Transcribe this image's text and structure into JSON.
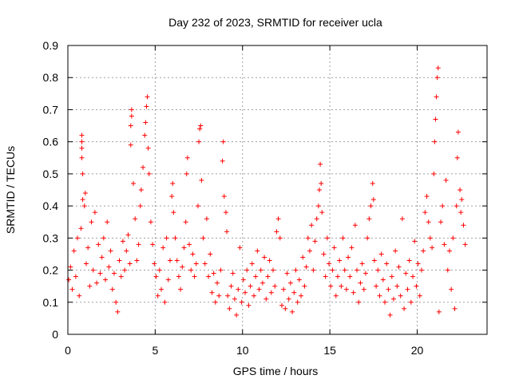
{
  "chart_data": {
    "type": "scatter",
    "title": "Day 232 of 2023, SRMTID for receiver ucla",
    "xlabel": "GPS time / hours",
    "ylabel": "SRMTID / TECUs",
    "xlim": [
      0,
      24
    ],
    "ylim": [
      0,
      0.9
    ],
    "xticks": [
      0,
      5,
      10,
      15,
      20
    ],
    "yticks": [
      0,
      0.1,
      0.2,
      0.3,
      0.4,
      0.5,
      0.6,
      0.7,
      0.8,
      0.9
    ],
    "grid": true,
    "marker": "+",
    "color": "#ff0000",
    "series": [
      {
        "name": "SRMTID",
        "points": [
          [
            0.05,
            0.17
          ],
          [
            0.15,
            0.21
          ],
          [
            0.25,
            0.14
          ],
          [
            0.35,
            0.26
          ],
          [
            0.45,
            0.18
          ],
          [
            0.55,
            0.3
          ],
          [
            0.65,
            0.12
          ],
          [
            0.75,
            0.33
          ],
          [
            0.8,
            0.55
          ],
          [
            0.8,
            0.58
          ],
          [
            0.8,
            0.6
          ],
          [
            0.8,
            0.62
          ],
          [
            0.85,
            0.5
          ],
          [
            0.85,
            0.42
          ],
          [
            0.95,
            0.4
          ],
          [
            1.0,
            0.44
          ],
          [
            1.05,
            0.22
          ],
          [
            1.15,
            0.27
          ],
          [
            1.25,
            0.15
          ],
          [
            1.35,
            0.35
          ],
          [
            1.45,
            0.2
          ],
          [
            1.55,
            0.38
          ],
          [
            1.65,
            0.16
          ],
          [
            1.75,
            0.28
          ],
          [
            1.85,
            0.19
          ],
          [
            1.95,
            0.24
          ],
          [
            2.05,
            0.3
          ],
          [
            2.15,
            0.17
          ],
          [
            2.25,
            0.35
          ],
          [
            2.35,
            0.21
          ],
          [
            2.45,
            0.26
          ],
          [
            2.55,
            0.14
          ],
          [
            2.65,
            0.19
          ],
          [
            2.75,
            0.1
          ],
          [
            2.85,
            0.07
          ],
          [
            2.95,
            0.23
          ],
          [
            3.05,
            0.18
          ],
          [
            3.15,
            0.29
          ],
          [
            3.25,
            0.2
          ],
          [
            3.35,
            0.26
          ],
          [
            3.45,
            0.31
          ],
          [
            3.55,
            0.22
          ],
          [
            3.6,
            0.59
          ],
          [
            3.6,
            0.65
          ],
          [
            3.65,
            0.68
          ],
          [
            3.65,
            0.7
          ],
          [
            3.75,
            0.47
          ],
          [
            3.85,
            0.36
          ],
          [
            3.95,
            0.23
          ],
          [
            4.05,
            0.28
          ],
          [
            4.15,
            0.4
          ],
          [
            4.2,
            0.45
          ],
          [
            4.3,
            0.52
          ],
          [
            4.4,
            0.62
          ],
          [
            4.45,
            0.66
          ],
          [
            4.5,
            0.71
          ],
          [
            4.55,
            0.74
          ],
          [
            4.6,
            0.58
          ],
          [
            4.65,
            0.5
          ],
          [
            4.75,
            0.35
          ],
          [
            4.85,
            0.28
          ],
          [
            4.95,
            0.22
          ],
          [
            5.05,
            0.18
          ],
          [
            5.15,
            0.12
          ],
          [
            5.25,
            0.2
          ],
          [
            5.35,
            0.14
          ],
          [
            5.45,
            0.27
          ],
          [
            5.55,
            0.1
          ],
          [
            5.65,
            0.3
          ],
          [
            5.75,
            0.17
          ],
          [
            5.85,
            0.23
          ],
          [
            5.95,
            0.43
          ],
          [
            6.0,
            0.47
          ],
          [
            6.05,
            0.38
          ],
          [
            6.15,
            0.3
          ],
          [
            6.25,
            0.23
          ],
          [
            6.35,
            0.18
          ],
          [
            6.45,
            0.14
          ],
          [
            6.55,
            0.21
          ],
          [
            6.65,
            0.27
          ],
          [
            6.75,
            0.35
          ],
          [
            6.8,
            0.5
          ],
          [
            6.85,
            0.55
          ],
          [
            6.95,
            0.28
          ],
          [
            7.05,
            0.2
          ],
          [
            7.15,
            0.25
          ],
          [
            7.25,
            0.18
          ],
          [
            7.35,
            0.22
          ],
          [
            7.45,
            0.4
          ],
          [
            7.5,
            0.6
          ],
          [
            7.55,
            0.64
          ],
          [
            7.6,
            0.65
          ],
          [
            7.65,
            0.48
          ],
          [
            7.75,
            0.3
          ],
          [
            7.85,
            0.22
          ],
          [
            7.95,
            0.36
          ],
          [
            8.05,
            0.18
          ],
          [
            8.15,
            0.25
          ],
          [
            8.25,
            0.13
          ],
          [
            8.35,
            0.19
          ],
          [
            8.45,
            0.1
          ],
          [
            8.55,
            0.16
          ],
          [
            8.65,
            0.12
          ],
          [
            8.75,
            0.2
          ],
          [
            8.85,
            0.54
          ],
          [
            8.9,
            0.6
          ],
          [
            8.95,
            0.43
          ],
          [
            9.05,
            0.38
          ],
          [
            9.1,
            0.32
          ],
          [
            9.15,
            0.12
          ],
          [
            9.25,
            0.08
          ],
          [
            9.35,
            0.15
          ],
          [
            9.45,
            0.19
          ],
          [
            9.55,
            0.11
          ],
          [
            9.65,
            0.06
          ],
          [
            9.75,
            0.14
          ],
          [
            9.85,
            0.27
          ],
          [
            9.95,
            0.1
          ],
          [
            10.05,
            0.17
          ],
          [
            10.15,
            0.13
          ],
          [
            10.25,
            0.2
          ],
          [
            10.35,
            0.09
          ],
          [
            10.45,
            0.15
          ],
          [
            10.55,
            0.22
          ],
          [
            10.65,
            0.12
          ],
          [
            10.75,
            0.18
          ],
          [
            10.85,
            0.26
          ],
          [
            10.95,
            0.14
          ],
          [
            11.05,
            0.2
          ],
          [
            11.15,
            0.16
          ],
          [
            11.25,
            0.24
          ],
          [
            11.35,
            0.11
          ],
          [
            11.45,
            0.18
          ],
          [
            11.55,
            0.23
          ],
          [
            11.65,
            0.13
          ],
          [
            11.75,
            0.2
          ],
          [
            11.85,
            0.15
          ],
          [
            11.95,
            0.32
          ],
          [
            12.05,
            0.36
          ],
          [
            12.15,
            0.3
          ],
          [
            12.25,
            0.09
          ],
          [
            12.35,
            0.14
          ],
          [
            12.45,
            0.08
          ],
          [
            12.55,
            0.19
          ],
          [
            12.65,
            0.11
          ],
          [
            12.75,
            0.16
          ],
          [
            12.85,
            0.07
          ],
          [
            12.95,
            0.13
          ],
          [
            13.05,
            0.2
          ],
          [
            13.15,
            0.1
          ],
          [
            13.25,
            0.17
          ],
          [
            13.35,
            0.12
          ],
          [
            13.45,
            0.24
          ],
          [
            13.55,
            0.15
          ],
          [
            13.65,
            0.21
          ],
          [
            13.75,
            0.3
          ],
          [
            13.85,
            0.26
          ],
          [
            13.95,
            0.34
          ],
          [
            14.05,
            0.2
          ],
          [
            14.15,
            0.29
          ],
          [
            14.25,
            0.36
          ],
          [
            14.35,
            0.4
          ],
          [
            14.4,
            0.45
          ],
          [
            14.45,
            0.53
          ],
          [
            14.5,
            0.47
          ],
          [
            14.55,
            0.38
          ],
          [
            14.65,
            0.25
          ],
          [
            14.75,
            0.18
          ],
          [
            14.85,
            0.3
          ],
          [
            14.95,
            0.22
          ],
          [
            15.05,
            0.15
          ],
          [
            15.15,
            0.2
          ],
          [
            15.25,
            0.27
          ],
          [
            15.35,
            0.12
          ],
          [
            15.45,
            0.18
          ],
          [
            15.55,
            0.23
          ],
          [
            15.65,
            0.15
          ],
          [
            15.75,
            0.3
          ],
          [
            15.85,
            0.2
          ],
          [
            15.95,
            0.14
          ],
          [
            16.05,
            0.24
          ],
          [
            16.15,
            0.18
          ],
          [
            16.25,
            0.27
          ],
          [
            16.35,
            0.13
          ],
          [
            16.45,
            0.34
          ],
          [
            16.55,
            0.2
          ],
          [
            16.65,
            0.1
          ],
          [
            16.75,
            0.16
          ],
          [
            16.85,
            0.22
          ],
          [
            16.95,
            0.14
          ],
          [
            17.05,
            0.19
          ],
          [
            17.15,
            0.3
          ],
          [
            17.25,
            0.36
          ],
          [
            17.35,
            0.4
          ],
          [
            17.45,
            0.47
          ],
          [
            17.5,
            0.42
          ],
          [
            17.55,
            0.23
          ],
          [
            17.65,
            0.15
          ],
          [
            17.75,
            0.2
          ],
          [
            17.85,
            0.12
          ],
          [
            17.95,
            0.25
          ],
          [
            18.05,
            0.17
          ],
          [
            18.15,
            0.1
          ],
          [
            18.25,
            0.22
          ],
          [
            18.35,
            0.14
          ],
          [
            18.45,
            0.06
          ],
          [
            18.55,
            0.18
          ],
          [
            18.65,
            0.11
          ],
          [
            18.75,
            0.26
          ],
          [
            18.85,
            0.15
          ],
          [
            18.95,
            0.21
          ],
          [
            19.05,
            0.12
          ],
          [
            19.15,
            0.36
          ],
          [
            19.25,
            0.08
          ],
          [
            19.35,
            0.19
          ],
          [
            19.45,
            0.14
          ],
          [
            19.55,
            0.23
          ],
          [
            19.65,
            0.1
          ],
          [
            19.75,
            0.18
          ],
          [
            19.85,
            0.29
          ],
          [
            19.95,
            0.15
          ],
          [
            20.05,
            0.22
          ],
          [
            20.15,
            0.12
          ],
          [
            20.25,
            0.2
          ],
          [
            20.35,
            0.26
          ],
          [
            20.45,
            0.38
          ],
          [
            20.55,
            0.43
          ],
          [
            20.65,
            0.35
          ],
          [
            20.75,
            0.3
          ],
          [
            20.85,
            0.27
          ],
          [
            20.95,
            0.5
          ],
          [
            21.0,
            0.6
          ],
          [
            21.05,
            0.67
          ],
          [
            21.1,
            0.74
          ],
          [
            21.15,
            0.8
          ],
          [
            21.2,
            0.83
          ],
          [
            21.25,
            0.07
          ],
          [
            21.35,
            0.35
          ],
          [
            21.45,
            0.4
          ],
          [
            21.55,
            0.28
          ],
          [
            21.65,
            0.48
          ],
          [
            21.75,
            0.2
          ],
          [
            21.85,
            0.26
          ],
          [
            21.95,
            0.14
          ],
          [
            22.05,
            0.3
          ],
          [
            22.15,
            0.08
          ],
          [
            22.25,
            0.4
          ],
          [
            22.3,
            0.55
          ],
          [
            22.35,
            0.63
          ],
          [
            22.45,
            0.45
          ],
          [
            22.5,
            0.38
          ],
          [
            22.55,
            0.42
          ],
          [
            22.65,
            0.34
          ],
          [
            22.75,
            0.28
          ]
        ]
      }
    ]
  }
}
